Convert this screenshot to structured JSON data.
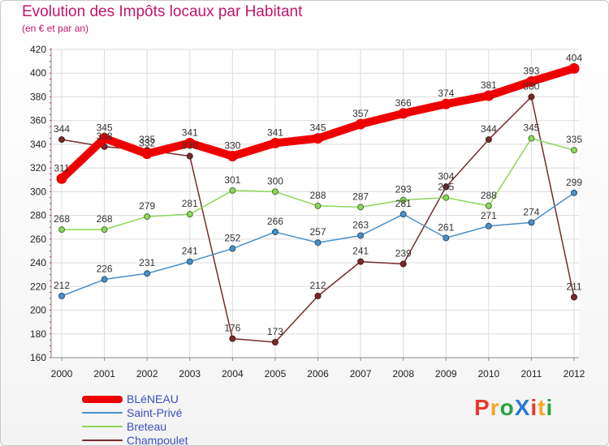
{
  "header": {
    "title": "Evolution des Impôts locaux par Habitant",
    "subtitle": "(en € et par an)"
  },
  "logo": {
    "text": "ProXiti",
    "colors": [
      "#e8382c",
      "#f7a823",
      "#27a244",
      "#2b7bd1",
      "#e8382c",
      "#f7a823",
      "#27a244"
    ]
  },
  "chart_data": {
    "type": "line",
    "title": "Evolution des Impôts locaux par Habitant",
    "subtitle": "(en € et par an)",
    "xlabel": "",
    "ylabel": "",
    "ylim": [
      160,
      420
    ],
    "yticks": [
      160,
      180,
      200,
      220,
      240,
      260,
      280,
      300,
      320,
      340,
      360,
      380,
      400,
      420
    ],
    "x": [
      "2000",
      "2001",
      "2002",
      "2003",
      "2004",
      "2005",
      "2006",
      "2007",
      "2008",
      "2009",
      "2010",
      "2011",
      "2012"
    ],
    "grid": true,
    "legend_position": "bottom-left",
    "series": [
      {
        "name": "BLéNEAU",
        "color": "#ee0000",
        "values": [
          311,
          345,
          332,
          341,
          330,
          341,
          345,
          357,
          366,
          374,
          381,
          393,
          404
        ]
      },
      {
        "name": "Saint-Privé",
        "color": "#4a90c8",
        "values": [
          212,
          226,
          231,
          241,
          252,
          266,
          257,
          263,
          281,
          261,
          271,
          274,
          299
        ]
      },
      {
        "name": "Breteau",
        "color": "#8ed65a",
        "values": [
          268,
          268,
          279,
          281,
          301,
          300,
          288,
          287,
          293,
          295,
          288,
          345,
          335
        ]
      },
      {
        "name": "Champoulet",
        "color": "#7a2a2a",
        "values": [
          344,
          338,
          335,
          330,
          176,
          173,
          212,
          241,
          239,
          304,
          344,
          380,
          211
        ]
      }
    ]
  }
}
